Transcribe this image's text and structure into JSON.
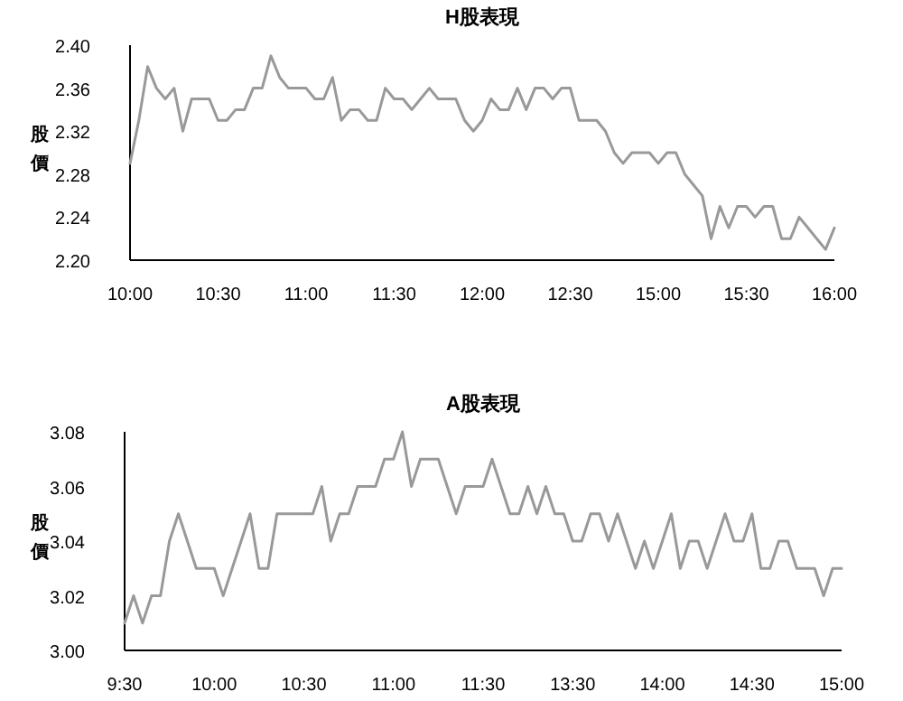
{
  "chart_data": [
    {
      "type": "line",
      "title": "H股表現",
      "ylabel": "股價",
      "categories": [
        "10:00",
        null,
        null,
        null,
        null,
        null,
        null,
        null,
        null,
        null,
        "10:30",
        null,
        null,
        null,
        null,
        null,
        null,
        null,
        null,
        null,
        "11:00",
        null,
        null,
        null,
        null,
        null,
        null,
        null,
        null,
        null,
        "11:30",
        null,
        null,
        null,
        null,
        null,
        null,
        null,
        null,
        null,
        "12:00",
        null,
        null,
        null,
        null,
        null,
        null,
        null,
        null,
        null,
        "12:30",
        null,
        null,
        null,
        null,
        null,
        null,
        null,
        null,
        null,
        "15:00",
        null,
        null,
        null,
        null,
        null,
        null,
        null,
        null,
        null,
        "15:30",
        null,
        null,
        null,
        null,
        null,
        null,
        null,
        null,
        null,
        "16:00"
      ],
      "ylim": [
        2.2,
        2.4
      ],
      "yticks": [
        {
          "value": 2.2,
          "label": "2.20"
        },
        {
          "value": 2.24,
          "label": "2.24"
        },
        {
          "value": 2.28,
          "label": "2.28"
        },
        {
          "value": 2.32,
          "label": "2.32"
        },
        {
          "value": 2.36,
          "label": "2.36"
        },
        {
          "value": 2.4,
          "label": "2.40"
        }
      ],
      "grid": false,
      "marker": "none",
      "line_style": "solid",
      "series": [
        {
          "color": "#999999",
          "values": [
            2.29,
            2.33,
            2.38,
            2.36,
            2.35,
            2.36,
            2.32,
            2.35,
            2.35,
            2.35,
            2.33,
            2.33,
            2.34,
            2.34,
            2.36,
            2.36,
            2.39,
            2.37,
            2.36,
            2.36,
            2.36,
            2.35,
            2.35,
            2.37,
            2.33,
            2.34,
            2.34,
            2.33,
            2.33,
            2.36,
            2.35,
            2.35,
            2.34,
            2.35,
            2.36,
            2.35,
            2.35,
            2.35,
            2.33,
            2.32,
            2.33,
            2.35,
            2.34,
            2.34,
            2.36,
            2.34,
            2.36,
            2.36,
            2.35,
            2.36,
            2.36,
            2.33,
            2.33,
            2.33,
            2.32,
            2.3,
            2.29,
            2.3,
            2.3,
            2.3,
            2.29,
            2.3,
            2.3,
            2.28,
            2.27,
            2.26,
            2.22,
            2.25,
            2.23,
            2.25,
            2.25,
            2.24,
            2.25,
            2.25,
            2.22,
            2.22,
            2.24,
            2.23,
            2.22,
            2.21,
            2.23
          ]
        }
      ]
    },
    {
      "type": "line",
      "title": "A股表現",
      "ylabel": "股價",
      "categories": [
        "9:30",
        null,
        null,
        null,
        null,
        null,
        null,
        null,
        null,
        null,
        "10:00",
        null,
        null,
        null,
        null,
        null,
        null,
        null,
        null,
        null,
        "10:30",
        null,
        null,
        null,
        null,
        null,
        null,
        null,
        null,
        null,
        "11:00",
        null,
        null,
        null,
        null,
        null,
        null,
        null,
        null,
        null,
        "11:30",
        null,
        null,
        null,
        null,
        null,
        null,
        null,
        null,
        null,
        "13:30",
        null,
        null,
        null,
        null,
        null,
        null,
        null,
        null,
        null,
        "14:00",
        null,
        null,
        null,
        null,
        null,
        null,
        null,
        null,
        null,
        "14:30",
        null,
        null,
        null,
        null,
        null,
        null,
        null,
        null,
        null,
        "15:00"
      ],
      "ylim": [
        3.0,
        3.08
      ],
      "yticks": [
        {
          "value": 3.0,
          "label": "3.00"
        },
        {
          "value": 3.02,
          "label": "3.02"
        },
        {
          "value": 3.04,
          "label": "3.04"
        },
        {
          "value": 3.06,
          "label": "3.06"
        },
        {
          "value": 3.08,
          "label": "3.08"
        }
      ],
      "grid": false,
      "marker": "none",
      "line_style": "solid",
      "series": [
        {
          "color": "#999999",
          "values": [
            3.01,
            3.02,
            3.01,
            3.02,
            3.02,
            3.04,
            3.05,
            3.04,
            3.03,
            3.03,
            3.03,
            3.02,
            3.03,
            3.04,
            3.05,
            3.03,
            3.03,
            3.05,
            3.05,
            3.05,
            3.05,
            3.05,
            3.06,
            3.04,
            3.05,
            3.05,
            3.06,
            3.06,
            3.06,
            3.07,
            3.07,
            3.08,
            3.06,
            3.07,
            3.07,
            3.07,
            3.06,
            3.05,
            3.06,
            3.06,
            3.06,
            3.07,
            3.06,
            3.05,
            3.05,
            3.06,
            3.05,
            3.06,
            3.05,
            3.05,
            3.04,
            3.04,
            3.05,
            3.05,
            3.04,
            3.05,
            3.04,
            3.03,
            3.04,
            3.03,
            3.04,
            3.05,
            3.03,
            3.04,
            3.04,
            3.03,
            3.04,
            3.05,
            3.04,
            3.04,
            3.05,
            3.03,
            3.03,
            3.04,
            3.04,
            3.03,
            3.03,
            3.03,
            3.02,
            3.03,
            3.03
          ]
        }
      ]
    }
  ]
}
